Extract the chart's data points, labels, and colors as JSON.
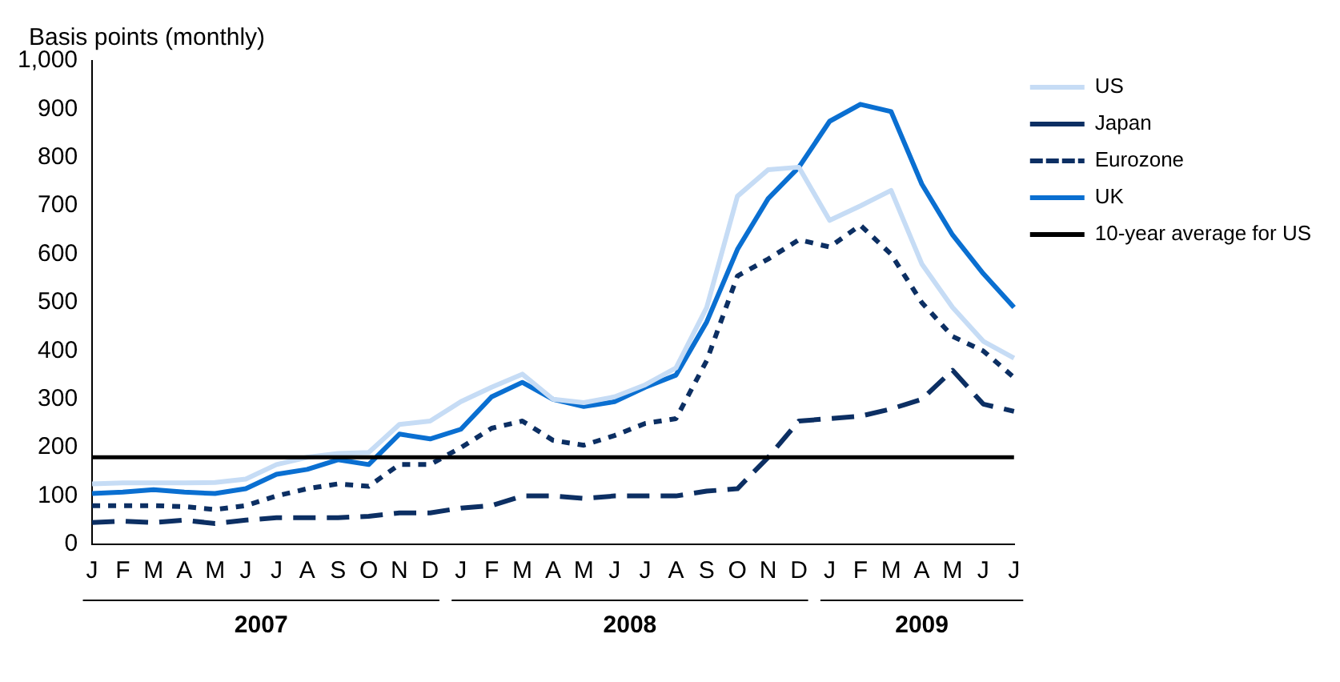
{
  "chart_data": {
    "type": "line",
    "ylabel": "Basis points (monthly)",
    "categories": [
      "J",
      "F",
      "M",
      "A",
      "M",
      "J",
      "J",
      "A",
      "S",
      "O",
      "N",
      "D",
      "J",
      "F",
      "M",
      "A",
      "M",
      "J",
      "J",
      "A",
      "S",
      "O",
      "N",
      "D",
      "J",
      "F",
      "M",
      "A",
      "M",
      "J",
      "J"
    ],
    "annotations": [
      "2007",
      "2008",
      "2009"
    ],
    "series": [
      {
        "name": "US",
        "color": "#c6dcf5",
        "line_style": "solid",
        "values": [
          125,
          127,
          127,
          127,
          128,
          135,
          165,
          180,
          188,
          190,
          248,
          255,
          295,
          325,
          352,
          300,
          293,
          305,
          330,
          365,
          490,
          720,
          775,
          780,
          670,
          700,
          732,
          580,
          490,
          420,
          385
        ]
      },
      {
        "name": "Japan",
        "color": "#0c2f63",
        "line_style": "dashed",
        "values": [
          45,
          48,
          45,
          50,
          43,
          50,
          55,
          55,
          55,
          58,
          65,
          65,
          75,
          80,
          100,
          100,
          95,
          100,
          100,
          100,
          110,
          115,
          180,
          255,
          260,
          265,
          280,
          300,
          360,
          290,
          275
        ]
      },
      {
        "name": "Eurozone",
        "color": "#0c2f63",
        "line_style": "dotted",
        "values": [
          80,
          80,
          80,
          78,
          72,
          80,
          100,
          115,
          125,
          120,
          165,
          165,
          200,
          240,
          255,
          215,
          205,
          225,
          250,
          260,
          380,
          555,
          590,
          630,
          615,
          660,
          600,
          500,
          430,
          400,
          345
        ]
      },
      {
        "name": "UK",
        "color": "#0a6fd1",
        "line_style": "solid",
        "values": [
          105,
          108,
          113,
          108,
          105,
          115,
          145,
          155,
          175,
          165,
          228,
          218,
          238,
          305,
          335,
          300,
          285,
          295,
          325,
          350,
          460,
          610,
          715,
          780,
          875,
          910,
          895,
          745,
          640,
          560,
          490
        ]
      }
    ],
    "ref_lines": [
      {
        "axis": "y",
        "value": 180,
        "label": "10-year average for US",
        "color": "#000000",
        "line_style": "solid"
      }
    ],
    "ylim": [
      0,
      1000
    ],
    "yticks": [
      0,
      100,
      200,
      300,
      400,
      500,
      600,
      700,
      800,
      900,
      {
        "value": 1000,
        "label": "1,000"
      }
    ],
    "grid": false,
    "legend": "right",
    "marker": "none"
  }
}
